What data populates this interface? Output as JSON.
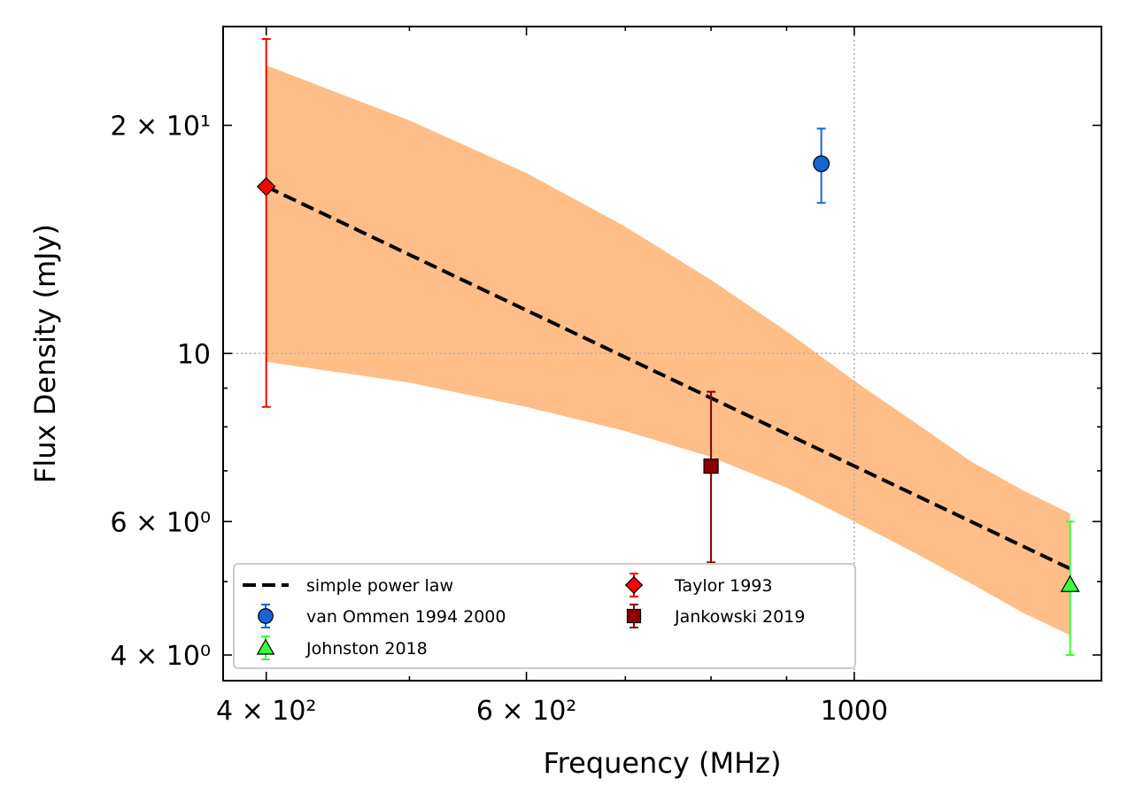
{
  "chart_data": {
    "type": "scatter",
    "xlabel": "Frequency (MHz)",
    "ylabel": "Flux Density (mJy)",
    "xscale": "log",
    "yscale": "log",
    "xlim": [
      374,
      1470
    ],
    "ylim": [
      3.7,
      27
    ],
    "grid": "dotted lines at x=1000 and y=10",
    "x_ticks": [
      {
        "value": 400,
        "label": "4 × 10²"
      },
      {
        "value": 600,
        "label": "6 × 10²"
      },
      {
        "value": 1000,
        "label": "1000"
      }
    ],
    "y_ticks": [
      {
        "value": 4,
        "label": "4 × 10⁰"
      },
      {
        "value": 6,
        "label": "6 × 10⁰"
      },
      {
        "value": 10,
        "label": "10"
      },
      {
        "value": 20,
        "label": "2 × 10¹"
      }
    ],
    "fit": {
      "name": "simple power law",
      "color": "#000000",
      "line": [
        [
          400,
          16.6
        ],
        [
          1400,
          5.2
        ]
      ],
      "band": {
        "color": "#ffbe87",
        "upper": [
          [
            400,
            24.0
          ],
          [
            500,
            20.3
          ],
          [
            600,
            17.3
          ],
          [
            700,
            14.7
          ],
          [
            800,
            12.5
          ],
          [
            900,
            10.7
          ],
          [
            1000,
            9.2
          ],
          [
            1100,
            8.1
          ],
          [
            1200,
            7.2
          ],
          [
            1300,
            6.6
          ],
          [
            1400,
            6.15
          ]
        ],
        "lower": [
          [
            400,
            9.75
          ],
          [
            500,
            9.15
          ],
          [
            600,
            8.5
          ],
          [
            700,
            7.9
          ],
          [
            800,
            7.3
          ],
          [
            900,
            6.65
          ],
          [
            1000,
            6.0
          ],
          [
            1100,
            5.45
          ],
          [
            1200,
            4.97
          ],
          [
            1300,
            4.55
          ],
          [
            1400,
            4.25
          ]
        ]
      }
    },
    "series": [
      {
        "name": "Taylor 1993",
        "marker": "diamond",
        "color": "#ff0000",
        "ecolor": "#ff0000",
        "points": [
          {
            "x": 400,
            "y": 16.6,
            "ylo": 8.5,
            "yhi": 26.0
          }
        ]
      },
      {
        "name": "van Ommen 1994 2000",
        "marker": "circle",
        "color": "#1565d8",
        "ecolor": "#1565d8",
        "points": [
          {
            "x": 950,
            "y": 17.8,
            "ylo": 15.8,
            "yhi": 19.8
          }
        ]
      },
      {
        "name": "Jankowski 2019",
        "marker": "square",
        "color": "#8b0000",
        "ecolor": "#8b0000",
        "points": [
          {
            "x": 800,
            "y": 7.1,
            "ylo": 5.3,
            "yhi": 8.9
          }
        ]
      },
      {
        "name": "Johnston 2018",
        "marker": "triangle",
        "color": "#39ff39",
        "ecolor": "#39ff39",
        "points": [
          {
            "x": 1400,
            "y": 4.95,
            "ylo": 4.0,
            "yhi": 6.0
          }
        ]
      }
    ],
    "legend": {
      "placement": "lower-left",
      "columns": [
        [
          "simple power law",
          "van Ommen 1994 2000",
          "Johnston 2018"
        ],
        [
          "Taylor 1993",
          "Jankowski 2019"
        ]
      ]
    }
  }
}
